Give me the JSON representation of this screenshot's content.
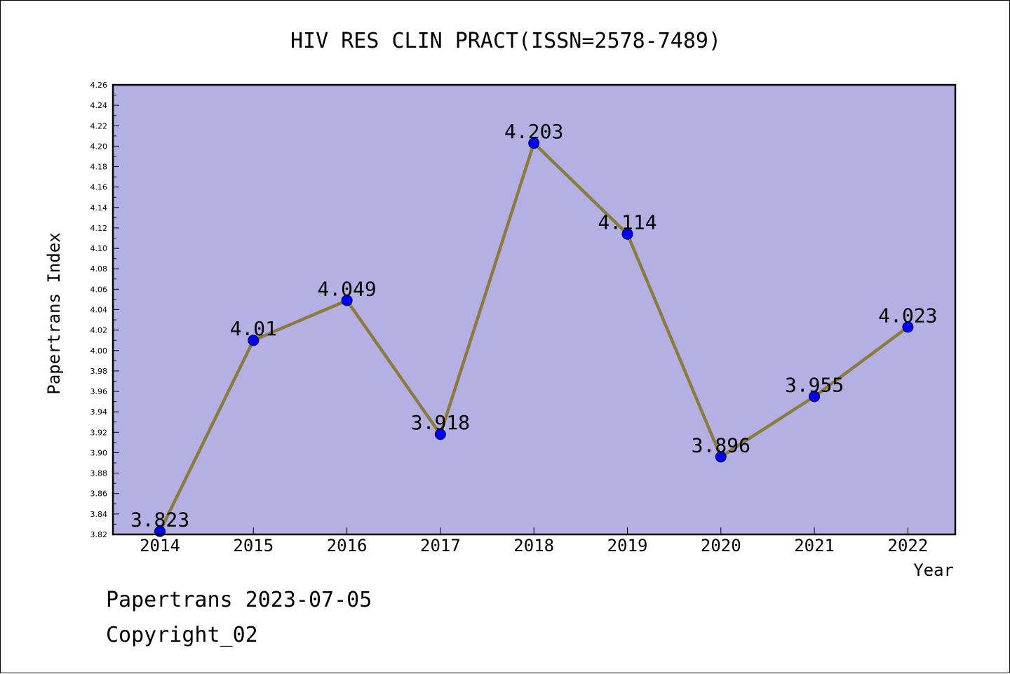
{
  "chart_data": {
    "type": "line",
    "title": "HIV RES CLIN PRACT(ISSN=2578-7489)",
    "xlabel": "Year",
    "ylabel": "Papertrans Index",
    "categories": [
      "2014",
      "2015",
      "2016",
      "2017",
      "2018",
      "2019",
      "2020",
      "2021",
      "2022"
    ],
    "series": [
      {
        "values": [
          3.823,
          4.01,
          4.049,
          3.918,
          4.203,
          4.114,
          3.896,
          3.955,
          4.023
        ],
        "labels": [
          "3.823",
          "4.01",
          "4.049",
          "3.918",
          "4.203",
          "4.114",
          "3.896",
          "3.955",
          "4.023"
        ]
      }
    ],
    "ylim": [
      3.82,
      4.26
    ],
    "ytick_step": 0.02,
    "grid": false,
    "legend": "none",
    "colors": {
      "plot_background": "#b5b0e3",
      "line": "#8c7b3e",
      "marker": "#0000ff"
    }
  },
  "footer": {
    "line1": "Papertrans 2023-07-05",
    "line2": "Copyright_02"
  }
}
